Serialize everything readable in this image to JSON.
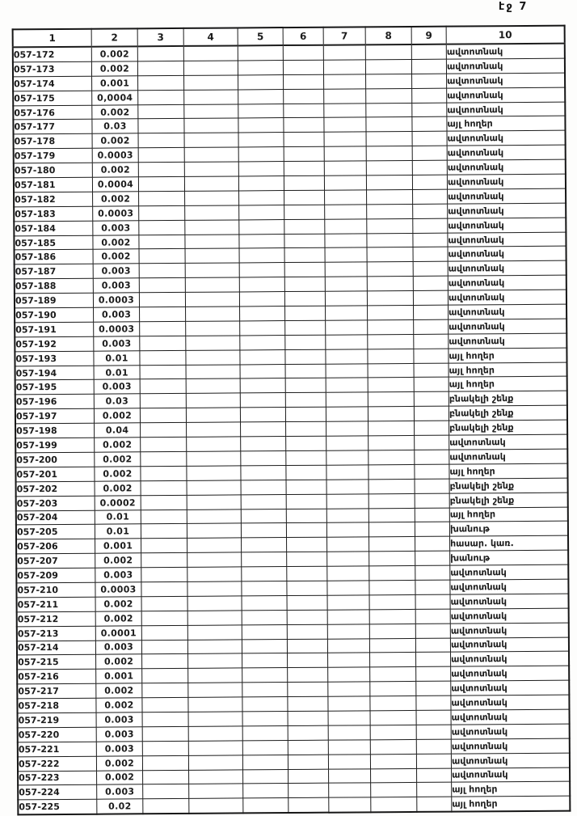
{
  "page": {
    "label": "էջ 7"
  },
  "colors": {
    "ink": "#1b1b1b",
    "paper": "#ffffff"
  },
  "table": {
    "headers": [
      "1",
      "2",
      "3",
      "4",
      "5",
      "6",
      "7",
      "8",
      "9",
      "10"
    ],
    "columns": [
      {
        "key": "id",
        "class": "c1",
        "name": "parcel-id-cell"
      },
      {
        "key": "value",
        "class": "c2",
        "name": "area-value-cell"
      },
      {
        "key": "",
        "class": "c3",
        "name": "empty-cell"
      },
      {
        "key": "",
        "class": "c4",
        "name": "empty-cell"
      },
      {
        "key": "",
        "class": "c5",
        "name": "empty-cell"
      },
      {
        "key": "",
        "class": "c6",
        "name": "empty-cell"
      },
      {
        "key": "",
        "class": "c7",
        "name": "empty-cell"
      },
      {
        "key": "",
        "class": "c8",
        "name": "empty-cell"
      },
      {
        "key": "",
        "class": "c9",
        "name": "empty-cell"
      },
      {
        "key": "use",
        "class": "c10",
        "name": "land-use-cell"
      }
    ],
    "rows": [
      {
        "id": "057-172",
        "value": "0.002",
        "use": "ավտոտնակ"
      },
      {
        "id": "057-173",
        "value": "0.002",
        "use": "ավտոտնակ"
      },
      {
        "id": "057-174",
        "value": "0.001",
        "use": "ավտոտնակ"
      },
      {
        "id": "057-175",
        "value": "0,0004",
        "use": "ավտոտնակ"
      },
      {
        "id": "057-176",
        "value": "0.002",
        "use": "ավտոտնակ"
      },
      {
        "id": "057-177",
        "value": "0.03",
        "use": "այլ հողեր"
      },
      {
        "id": "057-178",
        "value": "0.002",
        "use": "ավտոտնակ"
      },
      {
        "id": "057-179",
        "value": "0.0003",
        "use": "ավտոտնակ"
      },
      {
        "id": "057-180",
        "value": "0.002",
        "use": "ավտոտնակ"
      },
      {
        "id": "057-181",
        "value": "0.0004",
        "use": "ավտոտնակ"
      },
      {
        "id": "057-182",
        "value": "0.002",
        "use": "ավտոտնակ"
      },
      {
        "id": "057-183",
        "value": "0.0003",
        "use": "ավտոտնակ"
      },
      {
        "id": "057-184",
        "value": "0.003",
        "use": "ավտոտնակ"
      },
      {
        "id": "057-185",
        "value": "0.002",
        "use": "ավտոտնակ"
      },
      {
        "id": "057-186",
        "value": "0.002",
        "use": "ավտոտնակ"
      },
      {
        "id": "057-187",
        "value": "0.003",
        "use": "ավտոտնակ"
      },
      {
        "id": "057-188",
        "value": "0.003",
        "use": "ավտոտնակ"
      },
      {
        "id": "057-189",
        "value": "0.0003",
        "use": "ավտոտնակ"
      },
      {
        "id": "057-190",
        "value": "0.003",
        "use": "ավտոտնակ"
      },
      {
        "id": "057-191",
        "value": "0.0003",
        "use": "ավտոտնակ"
      },
      {
        "id": "057-192",
        "value": "0.003",
        "use": "ավտոտնակ"
      },
      {
        "id": "057-193",
        "value": "0.01",
        "use": "այլ հողեր"
      },
      {
        "id": "057-194",
        "value": "0.01",
        "use": "այլ հողեր"
      },
      {
        "id": "057-195",
        "value": "0.003",
        "use": "այլ հողեր"
      },
      {
        "id": "057-196",
        "value": "0.03",
        "use": "բնակելի շենք"
      },
      {
        "id": "057-197",
        "value": "0.002",
        "use": "բնակելի շենք"
      },
      {
        "id": "057-198",
        "value": "0.04",
        "use": "բնակելի շենք"
      },
      {
        "id": "057-199",
        "value": "0.002",
        "use": "ավտոտնակ"
      },
      {
        "id": "057-200",
        "value": "0.002",
        "use": "ավտոտնակ"
      },
      {
        "id": "057-201",
        "value": "0.002",
        "use": "այլ հողեր"
      },
      {
        "id": "057-202",
        "value": "0.002",
        "use": "բնակելի շենք"
      },
      {
        "id": "057-203",
        "value": "0.0002",
        "use": "բնակելի շենք"
      },
      {
        "id": "057-204",
        "value": "0.01",
        "use": "այլ հողեր"
      },
      {
        "id": "057-205",
        "value": "0.01",
        "use": "խանութ"
      },
      {
        "id": "057-206",
        "value": "0.001",
        "use": "հասար. կառ."
      },
      {
        "id": "057-207",
        "value": "0.002",
        "use": "խանութ"
      },
      {
        "id": "057-209",
        "value": "0.003",
        "use": "ավտոտնակ"
      },
      {
        "id": "057-210",
        "value": "0.0003",
        "use": "ավտոտնակ"
      },
      {
        "id": "057-211",
        "value": "0.002",
        "use": "ավտոտնակ"
      },
      {
        "id": "057-212",
        "value": "0.002",
        "use": "ավտոտնակ"
      },
      {
        "id": "057-213",
        "value": "0.0001",
        "use": "ավտոտնակ"
      },
      {
        "id": "057-214",
        "value": "0.003",
        "use": "ավտոտնակ"
      },
      {
        "id": "057-215",
        "value": "0.002",
        "use": "ավտոտնակ"
      },
      {
        "id": "057-216",
        "value": "0.001",
        "use": "ավտոտնակ"
      },
      {
        "id": "057-217",
        "value": "0.002",
        "use": "ավտոտնակ"
      },
      {
        "id": "057-218",
        "value": "0.002",
        "use": "ավտոտնակ"
      },
      {
        "id": "057-219",
        "value": "0.003",
        "use": "ավտոտնակ"
      },
      {
        "id": "057-220",
        "value": "0.003",
        "use": "ավտոտնակ"
      },
      {
        "id": "057-221",
        "value": "0.003",
        "use": "ավտոտնակ"
      },
      {
        "id": "057-222",
        "value": "0.002",
        "use": "ավտոտնակ"
      },
      {
        "id": "057-223",
        "value": "0.002",
        "use": "ավտոտնակ"
      },
      {
        "id": "057-224",
        "value": "0.003",
        "use": "այլ հողեր"
      },
      {
        "id": "057-225",
        "value": "0.02",
        "use": "այլ հողեր"
      }
    ]
  }
}
